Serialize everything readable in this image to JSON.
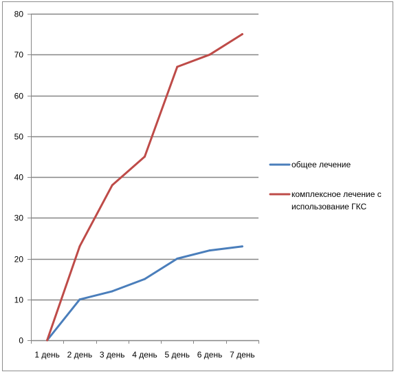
{
  "chart_data": {
    "type": "line",
    "categories": [
      "1 день",
      "2 день",
      "3 день",
      "4 день",
      "5 день",
      "6 день",
      "7 день"
    ],
    "ylim": [
      0,
      80
    ],
    "yticks": [
      0,
      10,
      20,
      30,
      40,
      50,
      60,
      70,
      80
    ],
    "grid": true,
    "legend_position": "right",
    "series": [
      {
        "name": "общее лечение",
        "color": "#4a7ebb",
        "values": [
          0,
          10,
          12,
          15,
          20,
          22,
          23
        ]
      },
      {
        "name": "комплексное лечение с использование ГКС",
        "name_lines": [
          "комплексное лечение с",
          "использование ГКС"
        ],
        "color": "#be4b48",
        "values": [
          0,
          23,
          38,
          45,
          67,
          70,
          75
        ]
      }
    ]
  }
}
